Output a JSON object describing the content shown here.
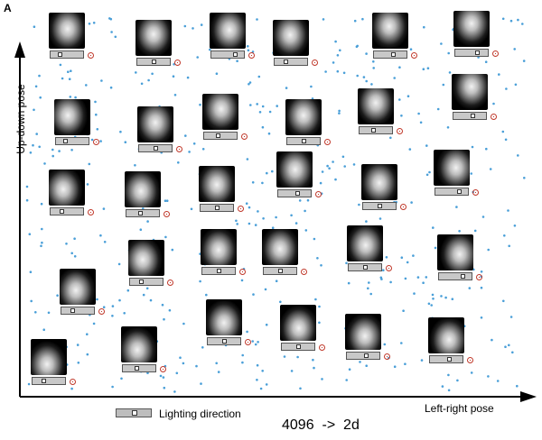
{
  "figure": {
    "panel_letter": "A",
    "y_axis_label": "Up-down pose",
    "x_axis_label": "Left-right pose",
    "legend_label": "Lighting direction",
    "caption": "4096  ->  2d"
  },
  "colors": {
    "points": "#4a9fd8",
    "marker": "#c0392b",
    "axis": "#000000"
  },
  "faces": [
    {
      "u": 0.52,
      "v": 0.45,
      "light": 0.2
    },
    {
      "u": 0.5,
      "v": 0.4,
      "light": 0.5
    },
    {
      "u": 0.55,
      "v": 0.48,
      "light": 0.8
    },
    {
      "u": 0.48,
      "v": 0.42,
      "light": 0.3
    },
    {
      "u": 0.47,
      "v": 0.38,
      "light": 0.6
    },
    {
      "u": 0.5,
      "v": 0.35,
      "light": 0.7
    },
    {
      "u": 0.38,
      "v": 0.45,
      "light": 0.2
    },
    {
      "u": 0.5,
      "v": 0.45,
      "light": 0.5
    },
    {
      "u": 0.52,
      "v": 0.42,
      "light": 0.4
    },
    {
      "u": 0.5,
      "v": 0.45,
      "light": 0.5
    },
    {
      "u": 0.5,
      "v": 0.4,
      "light": 0.4
    },
    {
      "u": 0.55,
      "v": 0.35,
      "light": 0.6
    },
    {
      "u": 0.4,
      "v": 0.55,
      "light": 0.3
    },
    {
      "u": 0.45,
      "v": 0.55,
      "light": 0.4
    },
    {
      "u": 0.5,
      "v": 0.52,
      "light": 0.5
    },
    {
      "u": 0.52,
      "v": 0.5,
      "light": 0.6
    },
    {
      "u": 0.5,
      "v": 0.52,
      "light": 0.5
    },
    {
      "u": 0.62,
      "v": 0.5,
      "light": 0.8
    },
    {
      "u": 0.4,
      "v": 0.55,
      "light": 0.3
    },
    {
      "u": 0.5,
      "v": 0.58,
      "light": 0.5
    },
    {
      "u": 0.5,
      "v": 0.55,
      "light": 0.5
    },
    {
      "u": 0.52,
      "v": 0.55,
      "light": 0.5
    },
    {
      "u": 0.62,
      "v": 0.55,
      "light": 0.8
    },
    {
      "u": 0.45,
      "v": 0.6,
      "light": 0.3
    },
    {
      "u": 0.45,
      "v": 0.65,
      "light": 0.4
    },
    {
      "u": 0.5,
      "v": 0.65,
      "light": 0.5
    },
    {
      "u": 0.52,
      "v": 0.65,
      "light": 0.5
    },
    {
      "u": 0.55,
      "v": 0.62,
      "light": 0.6
    },
    {
      "u": 0.58,
      "v": 0.62,
      "light": 0.6
    },
    {
      "u": 0.45,
      "v": 0.7,
      "light": 0.3
    }
  ]
}
